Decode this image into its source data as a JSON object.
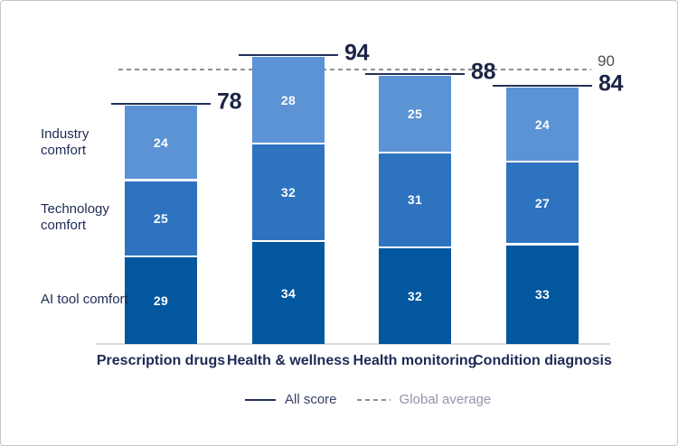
{
  "chart_data": {
    "type": "bar",
    "variant": "stacked",
    "categories": [
      "Prescription drugs",
      "Health & wellness",
      "Health monitoring",
      "Condition diagnosis"
    ],
    "series": [
      {
        "key": "ai-tool-comfort",
        "name": "AI tool comfort",
        "color": "#02579f",
        "values": [
          29,
          34,
          32,
          33
        ]
      },
      {
        "key": "technology-comfort",
        "name": "Technology comfort",
        "color": "#2e73c0",
        "values": [
          25,
          32,
          31,
          27
        ]
      },
      {
        "key": "industry-comfort",
        "name": "Industry comfort",
        "color": "#5b93d5",
        "values": [
          24,
          28,
          25,
          24
        ]
      }
    ],
    "totals": [
      78,
      94,
      88,
      84
    ],
    "global_average": {
      "value": 90,
      "display": "90"
    },
    "ylim": [
      0,
      100
    ],
    "grid": false,
    "legend_position": "bottom",
    "legend": [
      {
        "label": "All score",
        "style": "solid"
      },
      {
        "label": "Global average",
        "style": "dashed"
      }
    ]
  },
  "colors": {
    "dark_blue": "#02579f",
    "mid_blue": "#2e73c0",
    "light_blue": "#5b93d5",
    "navy_line": "#243158",
    "navy_text": "#1f2a55",
    "dashed_gray": "#8f8f8f",
    "axis_gray": "#dcdcdc"
  }
}
